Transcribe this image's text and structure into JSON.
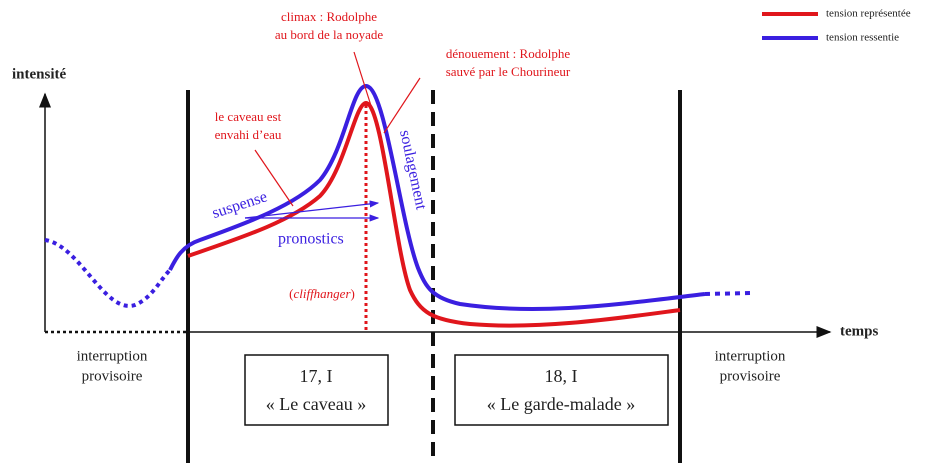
{
  "legend": {
    "represented": "tension représentée",
    "felt": "tension ressentie"
  },
  "axes": {
    "y": "intensité",
    "x": "temps"
  },
  "annotations": {
    "climax": [
      "climax : Rodolphe",
      "au bord de la noyade"
    ],
    "denouement": [
      "dénouement : Rodolphe",
      "sauvé par le Chourineur"
    ],
    "caveau": [
      "le caveau est",
      "envahi d’eau"
    ],
    "suspense": "suspense",
    "pronostics": "pronostics",
    "soulagement": "soulagement",
    "cliffhanger_open": "(",
    "cliffhanger": "cliffhanger",
    "cliffhanger_close": ")"
  },
  "episodes": [
    {
      "number": "17, I",
      "title": "« Le caveau »"
    },
    {
      "number": "18, I",
      "title": "« Le garde-malade »"
    }
  ],
  "interruptions": [
    [
      "interruption",
      "provisoire"
    ],
    [
      "interruption",
      "provisoire"
    ]
  ]
}
